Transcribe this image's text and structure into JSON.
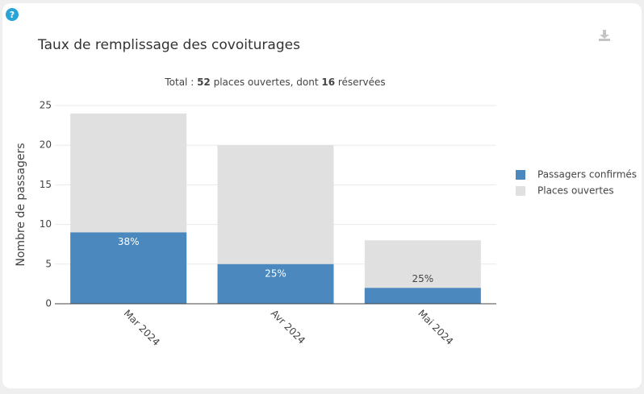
{
  "chart_data": {
    "type": "bar",
    "barmode": "overlay",
    "title": "Taux de remplissage des covoiturages",
    "subtitle": [
      "Total : ",
      "52",
      " places ouvertes, dont ",
      "16",
      " réservées"
    ],
    "y_label": "Nombre de passagers",
    "categories": [
      "Mar 2024",
      "Avr 2024",
      "Mai 2024"
    ],
    "series": [
      {
        "name": "Places ouvertes",
        "color": "#e0e0e0",
        "values": [
          24,
          20,
          8
        ]
      },
      {
        "name": "Passagers confirmés",
        "color": "#4a88bd",
        "values": [
          9,
          5,
          2
        ]
      }
    ],
    "bar_labels": [
      "38%",
      "25%",
      "25%"
    ],
    "ylim": [
      0,
      25
    ],
    "yticks": [
      0,
      5,
      10,
      15,
      20,
      25
    ],
    "grid": true,
    "legend_order": [
      1,
      0
    ]
  }
}
